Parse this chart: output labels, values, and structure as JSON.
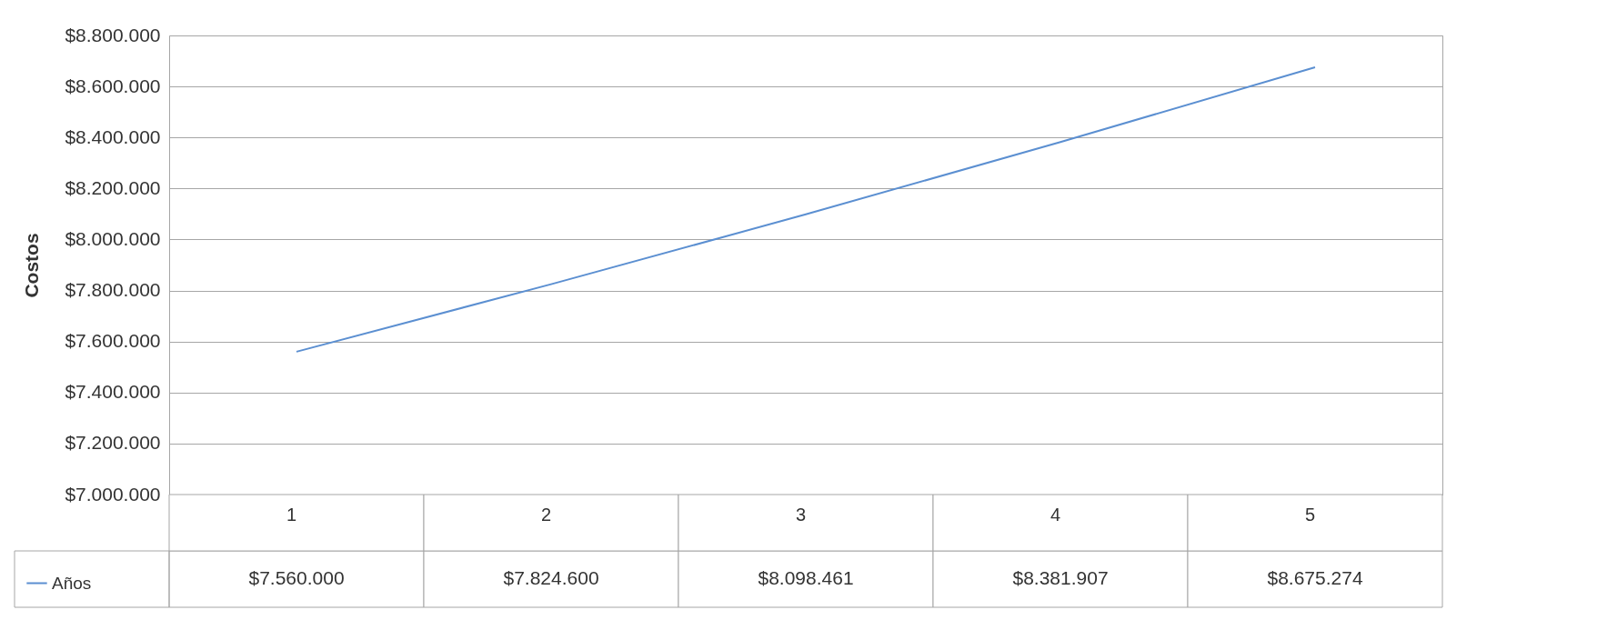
{
  "chart_data": {
    "type": "line",
    "ylabel": "Costos",
    "categories": [
      "1",
      "2",
      "3",
      "4",
      "5"
    ],
    "series": [
      {
        "name": "Años",
        "color": "#5b8fd1",
        "values": [
          7560000,
          7824600,
          8098461,
          8381907,
          8675274
        ],
        "value_labels": [
          "$7.560.000",
          "$7.824.600",
          "$8.098.461",
          "$8.381.907",
          "$8.675.274"
        ]
      }
    ],
    "ylim": [
      7000000,
      8800000
    ],
    "yticks": [
      {
        "value": 7000000,
        "label": "$7.000.000"
      },
      {
        "value": 7200000,
        "label": "$7.200.000"
      },
      {
        "value": 7400000,
        "label": "$7.400.000"
      },
      {
        "value": 7600000,
        "label": "$7.600.000"
      },
      {
        "value": 7800000,
        "label": "$7.800.000"
      },
      {
        "value": 8000000,
        "label": "$8.000.000"
      },
      {
        "value": 8200000,
        "label": "$8.200.000"
      },
      {
        "value": 8400000,
        "label": "$8.400.000"
      },
      {
        "value": 8600000,
        "label": "$8.600.000"
      },
      {
        "value": 8800000,
        "label": "$8.800.000"
      }
    ],
    "grid": "y",
    "legend": "bottom left",
    "marker": "none",
    "line_style": "solid"
  }
}
